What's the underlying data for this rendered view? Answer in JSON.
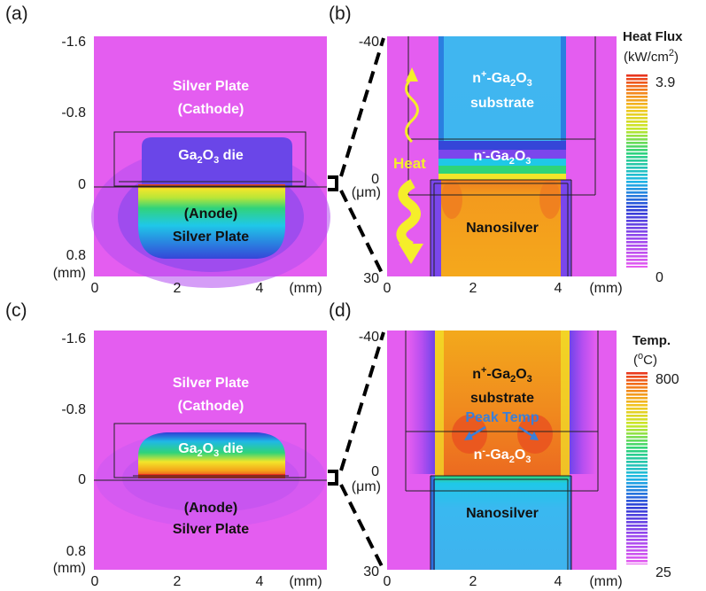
{
  "panels": {
    "a": "(a)",
    "b": "(b)",
    "c": "(c)",
    "d": "(d)"
  },
  "units": {
    "mm": "(mm)",
    "um": "(μm)"
  },
  "labels": {
    "silver_plate": "Silver Plate",
    "cathode": "(Cathode)",
    "anode": "(Anode)",
    "ga2o3": "Ga",
    "ga_sub2": "2",
    "ga_o": "O",
    "ga_sub3": "3",
    "die": " die",
    "n_plus": "n",
    "plus": "+",
    "n_minus": "n",
    "minus": "-",
    "dash": "-",
    "substrate": "substrate",
    "nanosilver": "Nanosilver",
    "heat": "Heat",
    "peak_temp": "Peak Temp"
  },
  "colorbars": {
    "flux": {
      "title": "Heat Flux",
      "unit_pre": "(kW/cm",
      "unit_sup": "2",
      "unit_post": ")",
      "max": "3.9",
      "min": "0"
    },
    "temp": {
      "title": "Temp.",
      "unit_pre": "(",
      "unit_sup": "o",
      "unit_post": "C)",
      "max": "800",
      "min": "25"
    }
  },
  "colors": {
    "magenta": "#e45df0",
    "purple": "#b34cf0",
    "blue": "#2f4bd8",
    "cyan": "#1fc8e8",
    "skyblue": "#3ab8f0",
    "green": "#31d37a",
    "yellow": "#f2e62a",
    "orange": "#f5a21a",
    "red": "#e8321f",
    "heat_arrow": "#f5ee2a"
  },
  "chart_data": [
    {
      "type": "heatmap",
      "panel": "(a)",
      "quantity": "Heat Flux",
      "unit": "kW/cm2",
      "x_ticks": [
        "0",
        "2",
        "4"
      ],
      "y_ticks": [
        "-1.6",
        "-0.8",
        "0",
        "0.8"
      ],
      "x_unit": "(mm)",
      "y_unit": "(mm)",
      "regions": [
        "Silver Plate (Cathode)",
        "Ga2O3 die",
        "(Anode) Silver Plate"
      ],
      "value_range": [
        0,
        3.9
      ]
    },
    {
      "type": "heatmap",
      "panel": "(b)",
      "quantity": "Heat Flux",
      "unit": "kW/cm2",
      "x_ticks": [
        "0",
        "2",
        "4"
      ],
      "y_ticks": [
        "-40",
        "0",
        "30"
      ],
      "x_unit": "(mm)",
      "y_unit": "(μm)",
      "regions": [
        "n+-Ga2O3 substrate",
        "n--Ga2O3",
        "Nanosilver"
      ],
      "annotations": [
        "Heat"
      ],
      "value_range": [
        0,
        3.9
      ]
    },
    {
      "type": "heatmap",
      "panel": "(c)",
      "quantity": "Temp.",
      "unit": "°C",
      "x_ticks": [
        "0",
        "2",
        "4"
      ],
      "y_ticks": [
        "-1.6",
        "-0.8",
        "0",
        "0.8"
      ],
      "x_unit": "(mm)",
      "y_unit": "(mm)",
      "regions": [
        "Silver Plate (Cathode)",
        "Ga2O3 die",
        "(Anode) Silver Plate"
      ],
      "value_range": [
        25,
        800
      ]
    },
    {
      "type": "heatmap",
      "panel": "(d)",
      "quantity": "Temp.",
      "unit": "°C",
      "x_ticks": [
        "0",
        "2",
        "4"
      ],
      "y_ticks": [
        "-40",
        "0",
        "30"
      ],
      "x_unit": "(mm)",
      "y_unit": "(μm)",
      "regions": [
        "n+-Ga2O3 substrate",
        "n--Ga2O3",
        "Nanosilver"
      ],
      "annotations": [
        "Peak Temp"
      ],
      "value_range": [
        25,
        800
      ]
    }
  ]
}
